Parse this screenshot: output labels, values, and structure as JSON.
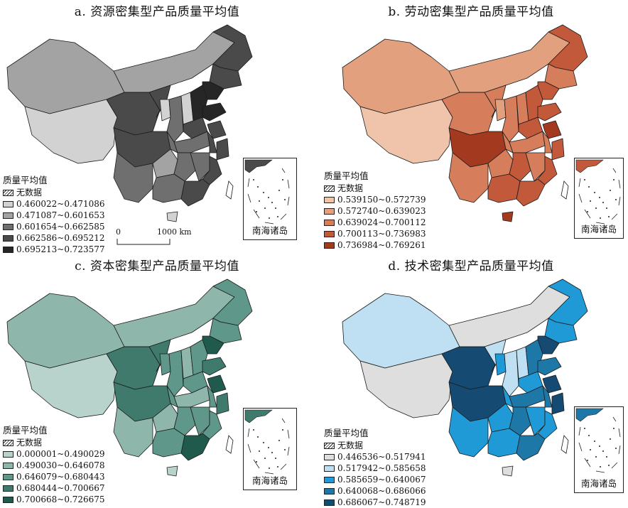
{
  "panels": [
    {
      "title": "a. 资源密集型产品质量平均值",
      "legend_title": "质量平均值",
      "no_data_label": "无数据",
      "classes": [
        "0.460022~0.471086",
        "0.471087~0.601653",
        "0.601654~0.662585",
        "0.662586~0.695212",
        "0.695213~0.723577"
      ],
      "colors": [
        "#d2d2d2",
        "#a3a3a3",
        "#6f6f6f",
        "#4a4a4a",
        "#262626"
      ],
      "inset_label": "南海诸岛",
      "scale_zero": "0",
      "scale_label": "1000 km"
    },
    {
      "title": "b. 劳动密集型产品质量平均值",
      "legend_title": "质量平均值",
      "no_data_label": "无数据",
      "classes": [
        "0.539150~0.572739",
        "0.572740~0.639023",
        "0.639024~0.700112",
        "0.700113~0.736983",
        "0.736984~0.769261"
      ],
      "colors": [
        "#efc4ab",
        "#e3a07f",
        "#d67e5c",
        "#c2593a",
        "#a33a1f"
      ],
      "inset_label": "南海诸岛"
    },
    {
      "title": "c. 资本密集型产品质量平均值",
      "legend_title": "质量平均值",
      "no_data_label": "无数据",
      "classes": [
        "0.000001~0.490029",
        "0.490030~0.646078",
        "0.646079~0.680443",
        "0.680444~0.700667",
        "0.700668~0.726675"
      ],
      "colors": [
        "#b8d3cc",
        "#8fb6ab",
        "#5f978a",
        "#3f7a6c",
        "#1f5a4c"
      ],
      "inset_label": "南海诸岛"
    },
    {
      "title": "d. 技术密集型产品质量平均值",
      "legend_title": "质量平均值",
      "no_data_label": "无数据",
      "classes": [
        "0.446536~0.517941",
        "0.517942~0.585658",
        "0.585659~0.640067",
        "0.640068~0.686066",
        "0.686067~0.748719"
      ],
      "colors": [
        "#dedede",
        "#bfe0f2",
        "#1f9ad6",
        "#1d78a8",
        "#154b72"
      ],
      "inset_label": "南海诸岛"
    }
  ]
}
